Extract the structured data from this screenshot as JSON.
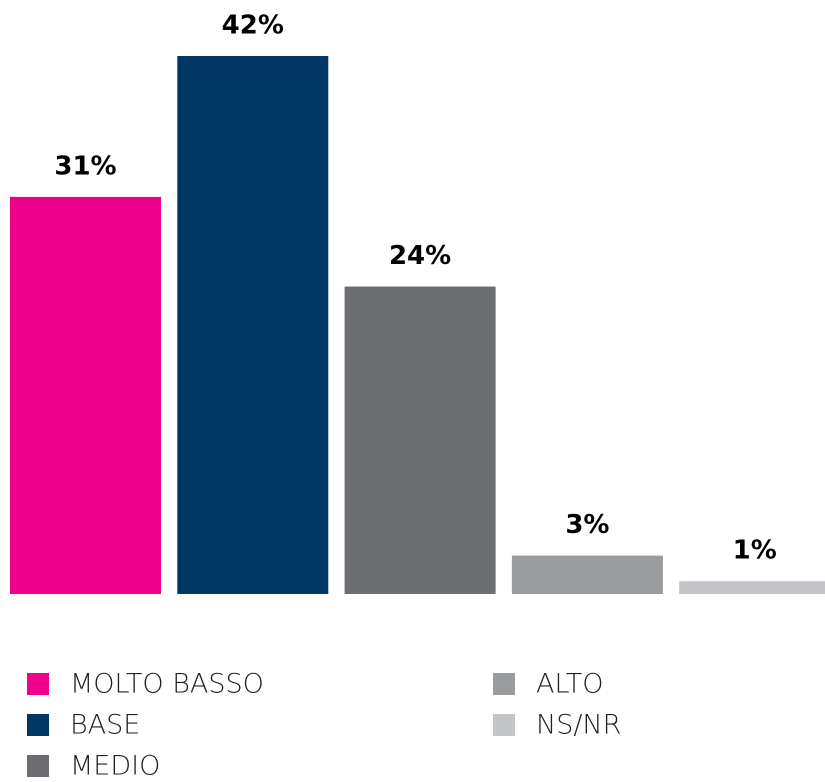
{
  "chart_data": {
    "type": "bar",
    "categories": [
      "MOLTO BASSO",
      "BASE",
      "MEDIO",
      "ALTO",
      "NS/NR"
    ],
    "values": [
      31,
      42,
      24,
      3,
      1
    ],
    "value_labels": [
      "31%",
      "42%",
      "24%",
      "3%",
      "1%"
    ],
    "colors": [
      "#ec008c",
      "#003764",
      "#6d6e71",
      "#9a9b9d",
      "#c4c5c8"
    ]
  }
}
